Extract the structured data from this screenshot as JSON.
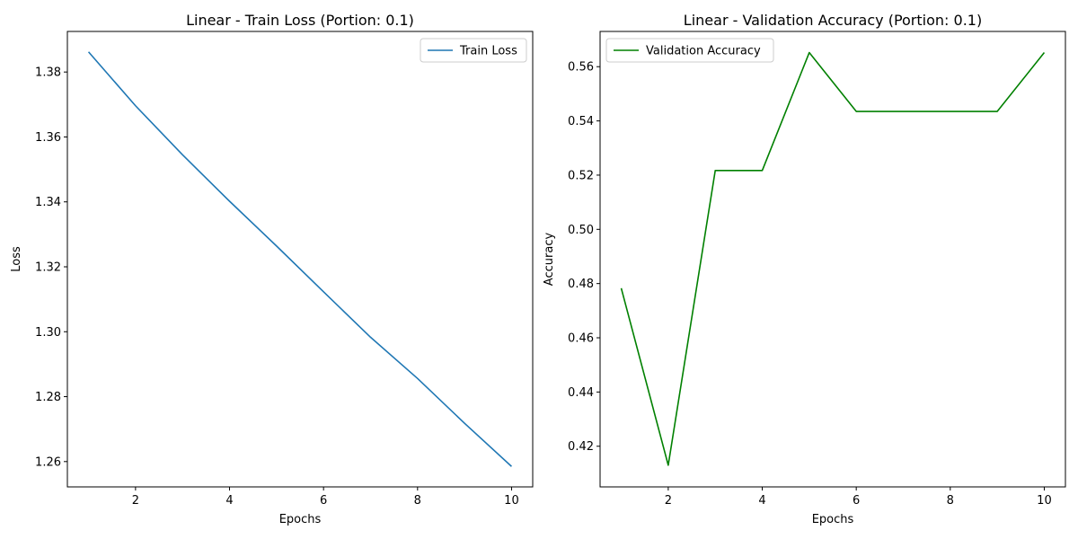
{
  "chart_data": [
    {
      "type": "line",
      "title": "Linear - Train Loss (Portion: 0.1)",
      "xlabel": "Epochs",
      "ylabel": "Loss",
      "xlim": [
        0.55,
        10.45
      ],
      "ylim": [
        1.2522,
        1.3925
      ],
      "xticks": [
        2,
        4,
        6,
        8,
        10
      ],
      "yticks": [
        1.26,
        1.28,
        1.3,
        1.32,
        1.34,
        1.36,
        1.38
      ],
      "ytick_labels": [
        "1.26",
        "1.28",
        "1.30",
        "1.32",
        "1.34",
        "1.36",
        "1.38"
      ],
      "grid": false,
      "legend_position": "upper right",
      "x": [
        1,
        2,
        3,
        4,
        5,
        6,
        7,
        8,
        9,
        10
      ],
      "series": [
        {
          "name": "Train Loss",
          "color": "#1f77b4",
          "values": [
            1.3862,
            1.3696,
            1.3545,
            1.3402,
            1.3264,
            1.3123,
            1.2983,
            1.2856,
            1.2718,
            1.2585
          ]
        }
      ]
    },
    {
      "type": "line",
      "title": "Linear - Validation Accuracy (Portion: 0.1)",
      "xlabel": "Epochs",
      "ylabel": "Accuracy",
      "xlim": [
        0.55,
        10.45
      ],
      "ylim": [
        0.405,
        0.573
      ],
      "xticks": [
        2,
        4,
        6,
        8,
        10
      ],
      "yticks": [
        0.42,
        0.44,
        0.46,
        0.48,
        0.5,
        0.52,
        0.54,
        0.56
      ],
      "ytick_labels": [
        "0.42",
        "0.44",
        "0.46",
        "0.48",
        "0.50",
        "0.52",
        "0.54",
        "0.56"
      ],
      "grid": false,
      "legend_position": "upper left",
      "x": [
        1,
        2,
        3,
        4,
        5,
        6,
        7,
        8,
        9,
        10
      ],
      "series": [
        {
          "name": "Validation Accuracy",
          "color": "#008000",
          "values": [
            0.4783,
            0.413,
            0.5217,
            0.5217,
            0.5652,
            0.5435,
            0.5435,
            0.5435,
            0.5435,
            0.5652
          ]
        }
      ]
    }
  ]
}
